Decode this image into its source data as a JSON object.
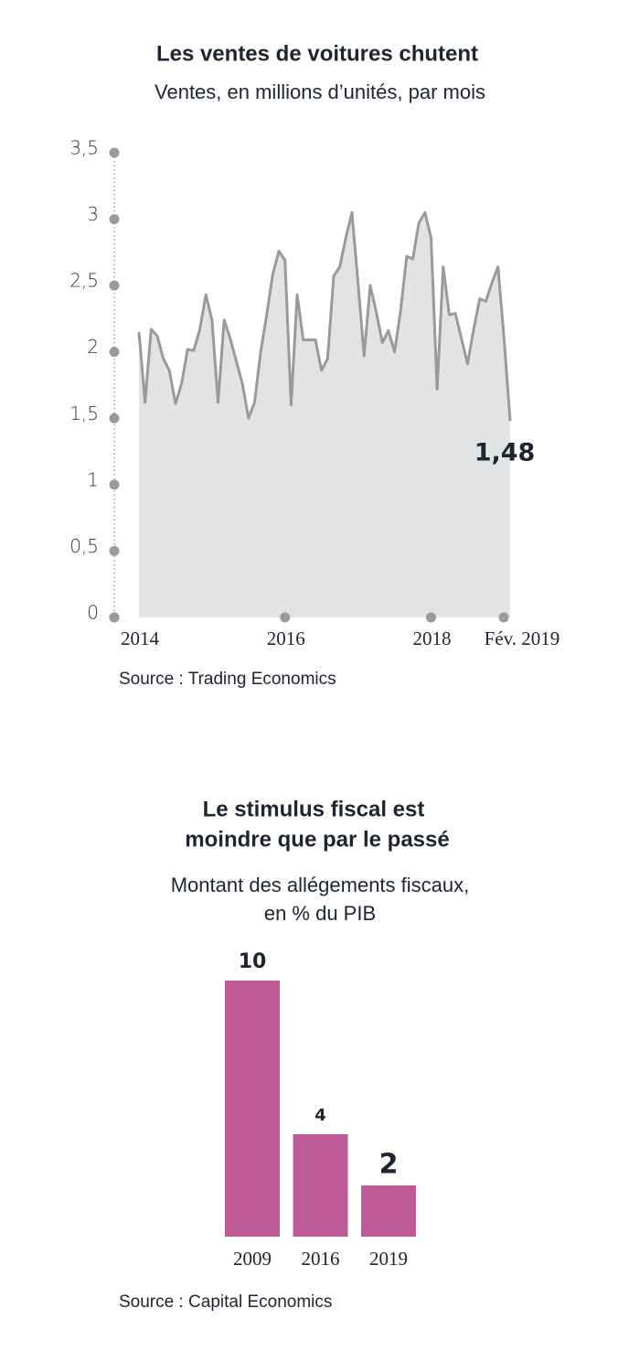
{
  "chart_data": [
    {
      "type": "area",
      "title": "Les ventes de voitures chutent",
      "subtitle": "Ventes, en millions d’unités, par mois",
      "categories": [
        "2014",
        null,
        null,
        null,
        null,
        null,
        null,
        null,
        null,
        null,
        null,
        null,
        null,
        null,
        null,
        null,
        null,
        null,
        null,
        null,
        null,
        null,
        null,
        null,
        "2016",
        null,
        null,
        null,
        null,
        null,
        null,
        null,
        null,
        null,
        null,
        null,
        null,
        null,
        null,
        null,
        null,
        null,
        null,
        null,
        null,
        null,
        null,
        null,
        "2018",
        null,
        null,
        null,
        null,
        null,
        null,
        null,
        null,
        null,
        null,
        null,
        null,
        "Fév. 2019"
      ],
      "values": [
        2.15,
        1.62,
        2.17,
        2.12,
        1.95,
        1.86,
        1.61,
        1.76,
        2.02,
        2.01,
        2.17,
        2.43,
        2.24,
        1.62,
        2.24,
        2.1,
        1.93,
        1.76,
        1.5,
        1.62,
        2.0,
        2.28,
        2.59,
        2.76,
        2.69,
        1.6,
        2.43,
        2.09,
        2.09,
        2.09,
        1.86,
        1.95,
        2.57,
        2.64,
        2.86,
        3.05,
        2.52,
        1.97,
        2.5,
        2.3,
        2.07,
        2.16,
        2.0,
        2.31,
        2.72,
        2.7,
        2.97,
        3.05,
        2.86,
        1.72,
        2.64,
        2.28,
        2.29,
        2.1,
        1.91,
        2.17,
        2.4,
        2.38,
        2.52,
        2.64,
        2.1,
        1.48
      ],
      "value_labels": [
        null,
        null,
        null,
        null,
        null,
        null,
        null,
        null,
        null,
        null,
        null,
        null,
        null,
        null,
        null,
        null,
        null,
        null,
        null,
        null,
        null,
        null,
        null,
        null,
        null,
        null,
        null,
        null,
        null,
        null,
        null,
        null,
        null,
        null,
        null,
        null,
        null,
        null,
        null,
        null,
        null,
        null,
        null,
        null,
        null,
        null,
        null,
        null,
        null,
        null,
        null,
        null,
        null,
        null,
        null,
        null,
        null,
        null,
        null,
        null,
        null,
        "1,48"
      ],
      "color": "#999a9d",
      "fill": "#e2e3e5",
      "ylim": [
        0,
        3.5
      ],
      "yticks": [
        0,
        {
          "value": 0.5,
          "label": "0,5"
        },
        1,
        {
          "value": 1.5,
          "label": "1,5"
        },
        2,
        {
          "value": 2.5,
          "label": "2,5"
        },
        3,
        {
          "value": 3.5,
          "label": "3,5"
        }
      ],
      "source": "Source : Trading Economics"
    },
    {
      "type": "bar",
      "title": [
        "Le stimulus fiscal est",
        "moindre que par le passé"
      ],
      "subtitle": [
        "Montant des allégements fiscaux,",
        "en % du PIB"
      ],
      "categories": [
        "2009",
        "2016",
        "2019"
      ],
      "values": [
        10,
        4,
        2
      ],
      "color": "#be5a97",
      "source": "Source : Capital Economics"
    }
  ]
}
